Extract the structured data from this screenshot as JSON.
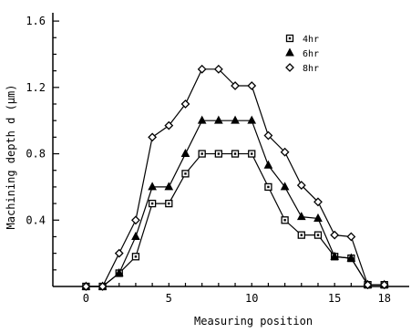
{
  "chart_data": {
    "type": "line",
    "title": "",
    "xlabel": "Measuring position",
    "ylabel": "Machining depth d (µm)",
    "xlim": [
      -2,
      19.5
    ],
    "ylim": [
      0,
      1.65
    ],
    "x_ticks": [
      0,
      5,
      10,
      15,
      18
    ],
    "y_ticks": [
      0.4,
      0.8,
      1.2,
      1.6
    ],
    "x_tick_labels": [
      "0",
      "5",
      "10",
      "15",
      "18"
    ],
    "y_tick_labels": [
      "0.4",
      "0.8",
      "1.2",
      "1.6"
    ],
    "grid": false,
    "legend_position": "top-right",
    "x": [
      0,
      1,
      2,
      3,
      4,
      5,
      6,
      7,
      8,
      9,
      10,
      11,
      12,
      13,
      14,
      15,
      16,
      17,
      18
    ],
    "series": [
      {
        "name": "4hr",
        "marker": "square",
        "values": [
          0,
          0,
          0.08,
          0.18,
          0.5,
          0.5,
          0.68,
          0.8,
          0.8,
          0.8,
          0.8,
          0.6,
          0.4,
          0.31,
          0.31,
          0.18,
          0.17,
          0.01,
          0.01
        ]
      },
      {
        "name": "6hr",
        "marker": "triangle",
        "values": [
          0,
          0,
          0.08,
          0.3,
          0.6,
          0.6,
          0.8,
          1.0,
          1.0,
          1.0,
          1.0,
          0.73,
          0.6,
          0.42,
          0.41,
          0.18,
          0.17,
          0.01,
          0.01
        ]
      },
      {
        "name": "8hr",
        "marker": "diamond",
        "values": [
          0,
          0,
          0.2,
          0.4,
          0.9,
          0.97,
          1.1,
          1.31,
          1.31,
          1.21,
          1.21,
          0.91,
          0.81,
          0.61,
          0.51,
          0.31,
          0.3,
          0.01,
          0.01
        ]
      }
    ]
  }
}
